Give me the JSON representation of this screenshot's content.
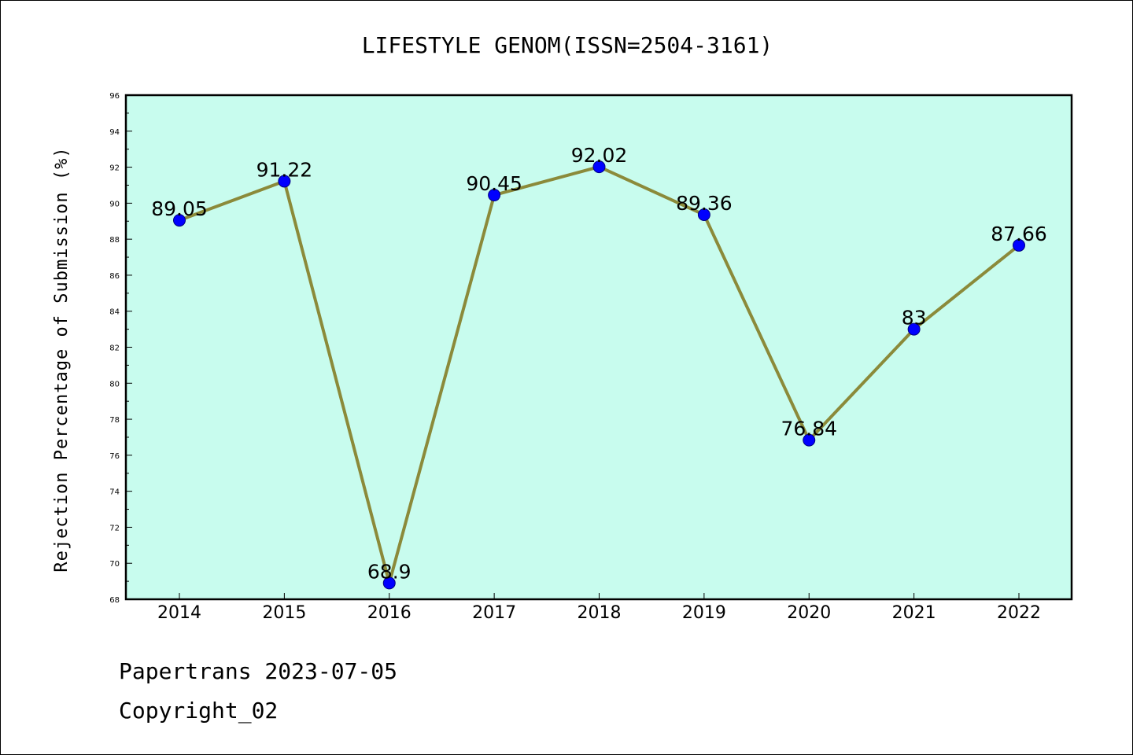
{
  "chart_data": {
    "type": "line",
    "title": "LIFESTYLE GENOM(ISSN=2504-3161)",
    "xlabel": "",
    "ylabel": "Rejection Percentage of Submission (%)",
    "categories": [
      "2014",
      "2015",
      "2016",
      "2017",
      "2018",
      "2019",
      "2020",
      "2021",
      "2022"
    ],
    "series": [
      {
        "values": [
          89.05,
          91.22,
          68.9,
          90.45,
          92.02,
          89.36,
          76.84,
          83,
          87.66
        ],
        "labels": [
          "89.05",
          "91.22",
          "68.9",
          "90.45",
          "92.02",
          "89.36",
          "76.84",
          "83",
          "87.66"
        ]
      }
    ],
    "ylim": [
      68,
      96
    ],
    "yticks": [
      "68",
      "70",
      "72",
      "74",
      "76",
      "78",
      "80",
      "82",
      "84",
      "86",
      "88",
      "90",
      "92",
      "94",
      "96"
    ],
    "grid": false,
    "colors": {
      "plot_background": "#c8fcee",
      "line": "#8b8a3a",
      "marker": "#0000ff",
      "marker_edge": "#000080"
    }
  },
  "footer": {
    "line1": "Papertrans 2023-07-05",
    "line2": "Copyright_02"
  }
}
